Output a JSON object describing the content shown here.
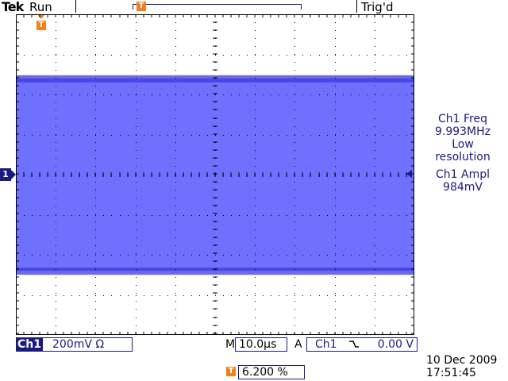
{
  "top_bar": {
    "brand": "Tek",
    "acquisition_state": "Run",
    "trigger_state": "Trig'd",
    "record_marker": "T"
  },
  "trigger_position_marker": "T",
  "channel_marker": "1",
  "measurements": [
    {
      "line1": "Ch1 Freq",
      "line2": "9.993MHz",
      "line3": "Low",
      "line4": "resolution"
    },
    {
      "line1": "Ch1 Ampl",
      "line2": "984mV"
    }
  ],
  "bottom": {
    "channel_label": "Ch1",
    "volts_per_div": "200mV",
    "coupling_symbol": "Ω",
    "timebase_prefix": "M",
    "time_per_div": "10.0µs",
    "trigger_prefix": "A",
    "trigger_source": "Ch1",
    "trigger_level": "0.00 V",
    "position_marker": "T",
    "horizontal_position": "6.200 %",
    "date": "10 Dec  2009",
    "time": "17:51:45"
  },
  "colors": {
    "trace": "#7070ff",
    "trace_edge": "#3a3ae0",
    "accent": "#1a1a80",
    "trigger_marker": "#f08020",
    "grid": "#000000"
  },
  "waveform": {
    "channel": "Ch1",
    "vertical_divisions": 8,
    "horizontal_divisions": 10,
    "upper_envelope_div": 2.4,
    "lower_envelope_div": -2.4
  }
}
